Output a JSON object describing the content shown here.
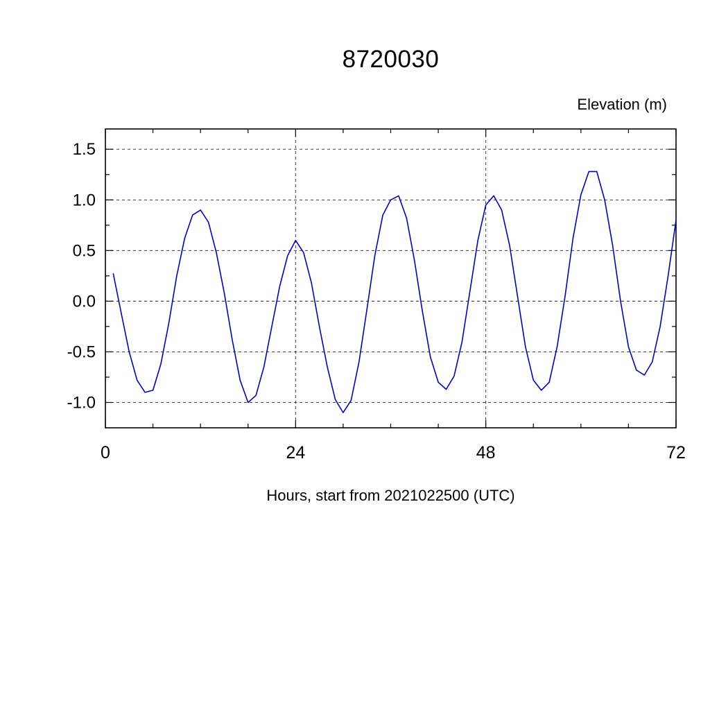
{
  "chart_data": {
    "type": "line",
    "title": "8720030",
    "ylabel": "Elevation (m)",
    "xlabel": "Hours, start from 2021022500 (UTC)",
    "xlim": [
      0,
      72
    ],
    "ylim": [
      -1.25,
      1.7
    ],
    "x_major_ticks": [
      0,
      24,
      48,
      72
    ],
    "x_tick_labels": [
      "0",
      "24",
      "48",
      "72"
    ],
    "x_minor_step": 6,
    "y_major_ticks": [
      1.5,
      1.0,
      0.5,
      0.0,
      -0.5,
      -1.0
    ],
    "y_tick_labels": [
      "1.5",
      "1.0",
      "0.5",
      "0.0",
      "-0.5",
      "-1.0"
    ],
    "y_minor_step": 0.25,
    "x_grid_lines": [
      24,
      48
    ],
    "grid": "dashed",
    "legend_position": "none",
    "line_color": "#0000cc",
    "series": [
      {
        "name": "elevation",
        "x": [
          1,
          2,
          3,
          4,
          5,
          6,
          7,
          8,
          9,
          10,
          11,
          12,
          13,
          14,
          15,
          16,
          17,
          18,
          19,
          20,
          21,
          22,
          23,
          24,
          25,
          26,
          27,
          28,
          29,
          30,
          31,
          32,
          33,
          34,
          35,
          36,
          37,
          38,
          39,
          40,
          41,
          42,
          43,
          44,
          45,
          46,
          47,
          48,
          49,
          50,
          51,
          52,
          53,
          54,
          55,
          56,
          57,
          58,
          59,
          60,
          61,
          62,
          63,
          64,
          65,
          66,
          67,
          68,
          69,
          70,
          71,
          72
        ],
        "y": [
          0.27,
          -0.12,
          -0.5,
          -0.78,
          -0.9,
          -0.88,
          -0.62,
          -0.22,
          0.25,
          0.62,
          0.85,
          0.9,
          0.78,
          0.48,
          0.08,
          -0.38,
          -0.78,
          -1.0,
          -0.93,
          -0.65,
          -0.25,
          0.15,
          0.45,
          0.6,
          0.48,
          0.18,
          -0.25,
          -0.65,
          -0.97,
          -1.1,
          -0.98,
          -0.6,
          -0.08,
          0.45,
          0.85,
          1.0,
          1.04,
          0.82,
          0.4,
          -0.1,
          -0.55,
          -0.8,
          -0.87,
          -0.74,
          -0.4,
          0.1,
          0.6,
          0.95,
          1.04,
          0.9,
          0.55,
          0.05,
          -0.45,
          -0.78,
          -0.88,
          -0.8,
          -0.45,
          0.05,
          0.62,
          1.05,
          1.28,
          1.28,
          1.0,
          0.55,
          0.0,
          -0.45,
          -0.68,
          -0.73,
          -0.6,
          -0.25,
          0.25,
          0.8
        ]
      }
    ]
  }
}
